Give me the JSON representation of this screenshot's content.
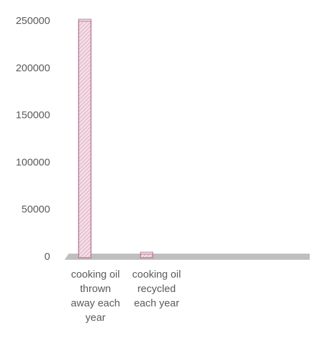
{
  "chart_data": {
    "type": "bar",
    "categories": [
      "cooking oil thrown away each year",
      "cooking oil recycled each year"
    ],
    "category_lines": [
      [
        "cooking oil",
        "thrown",
        "away each",
        "year"
      ],
      [
        "cooking oil",
        "recycled",
        "each year"
      ]
    ],
    "values": [
      250000,
      3000
    ],
    "ylim": [
      0,
      250000
    ],
    "yticks": [
      0,
      50000,
      100000,
      150000,
      200000,
      250000
    ],
    "grid": false,
    "legend": "none",
    "colors": {
      "bar_fill": "#f4dde6",
      "bar_stroke": "#b5819b",
      "bar_hatch": "#c98aa8",
      "floor": "#bfbfbf"
    }
  }
}
